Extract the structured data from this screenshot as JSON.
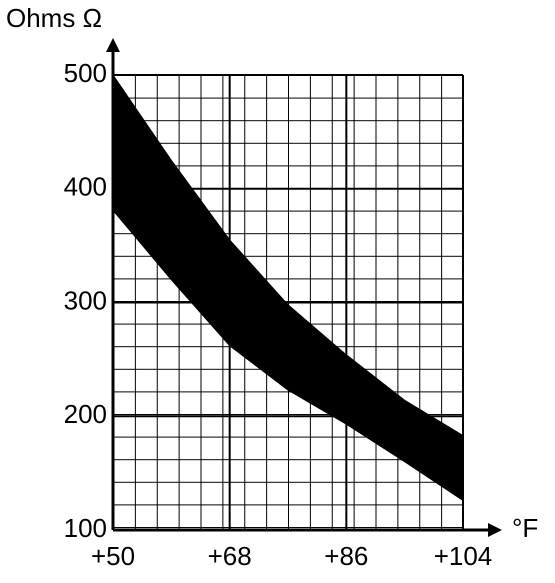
{
  "chart_data": {
    "type": "band",
    "y_label": "Ohms Ω",
    "x_label": "°F",
    "x": [
      50,
      59,
      68,
      77,
      86,
      95,
      104
    ],
    "upper": [
      500,
      425,
      355,
      298,
      254,
      214,
      183
    ],
    "lower": [
      381,
      320,
      262,
      223,
      193,
      160,
      126
    ],
    "color": "#000000",
    "xlim": [
      50,
      104
    ],
    "xticks": [
      {
        "value": 50,
        "label": "+50"
      },
      {
        "value": 68,
        "label": "+68"
      },
      {
        "value": 86,
        "label": "+86"
      },
      {
        "value": 104,
        "label": "+104"
      }
    ],
    "ylim": [
      100,
      500
    ],
    "yticks": [
      100,
      200,
      300,
      400,
      500
    ],
    "grid": true
  }
}
